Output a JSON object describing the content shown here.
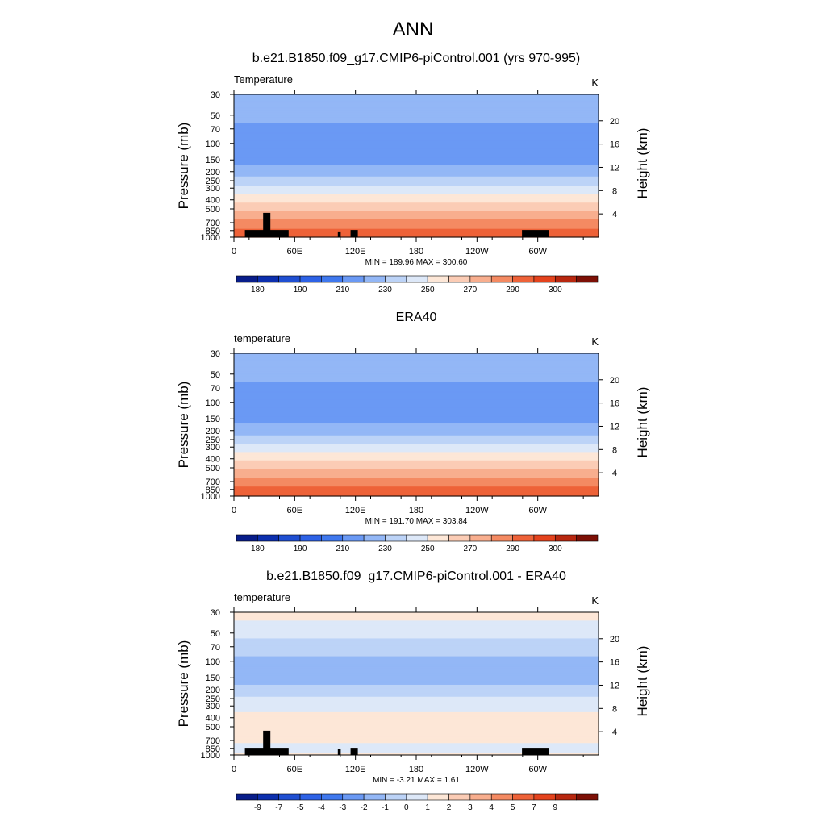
{
  "figure": {
    "title": "ANN"
  },
  "chart_data": [
    {
      "type": "heatmap",
      "title": "b.e21.B1850.f09_g17.CMIP6-piControl.001 (yrs 970-995)",
      "left_label": "Temperature",
      "units": "K",
      "ylabel": "Pressure (mb)",
      "ylabel_right": "Height (km)",
      "x_ticks": [
        "0",
        "60E",
        "120E",
        "180",
        "120W",
        "60W"
      ],
      "y_ticks": [
        "30",
        "50",
        "70",
        "100",
        "150",
        "200",
        "250",
        "300",
        "400",
        "500",
        "700",
        "850",
        "1000"
      ],
      "y_ticks_right": [
        "20",
        "16",
        "12",
        "8",
        "4"
      ],
      "stats": "MIN = 189.96  MAX = 300.60",
      "colorbar_labels": [
        "180",
        "190",
        "210",
        "230",
        "250",
        "270",
        "290",
        "300"
      ],
      "levels": [
        175,
        180,
        185,
        190,
        200,
        210,
        220,
        230,
        240,
        250,
        260,
        270,
        280,
        290,
        295,
        300
      ],
      "profile": {
        "pressure": [
          30,
          50,
          70,
          100,
          150,
          200,
          250,
          300,
          400,
          500,
          700,
          850,
          1000
        ],
        "temperature": [
          216,
          213,
          208,
          205,
          207,
          215,
          224,
          232,
          247,
          258,
          273,
          282,
          289
        ]
      },
      "min": 189.96,
      "max": 300.6,
      "topography": true
    },
    {
      "type": "heatmap",
      "title": "ERA40",
      "left_label": "temperature",
      "units": "K",
      "ylabel": "Pressure (mb)",
      "ylabel_right": "Height (km)",
      "x_ticks": [
        "0",
        "60E",
        "120E",
        "180",
        "120W",
        "60W"
      ],
      "y_ticks": [
        "30",
        "50",
        "70",
        "100",
        "150",
        "200",
        "250",
        "300",
        "400",
        "500",
        "700",
        "850",
        "1000"
      ],
      "y_ticks_right": [
        "20",
        "16",
        "12",
        "8",
        "4"
      ],
      "stats": "MIN = 191.70  MAX = 303.84",
      "colorbar_labels": [
        "180",
        "190",
        "210",
        "230",
        "250",
        "270",
        "290",
        "300"
      ],
      "levels": [
        175,
        180,
        185,
        190,
        200,
        210,
        220,
        230,
        240,
        250,
        260,
        270,
        280,
        290,
        295,
        300
      ],
      "profile": {
        "pressure": [
          30,
          50,
          70,
          100,
          150,
          200,
          250,
          300,
          400,
          500,
          700,
          850,
          1000
        ],
        "temperature": [
          216,
          213,
          208,
          205,
          207,
          215,
          225,
          233,
          248,
          259,
          274,
          283,
          290
        ]
      },
      "min": 191.7,
      "max": 303.84,
      "topography": false
    },
    {
      "type": "heatmap",
      "title": "b.e21.B1850.f09_g17.CMIP6-piControl.001 - ERA40",
      "left_label": "temperature",
      "units": "K",
      "ylabel": "Pressure (mb)",
      "ylabel_right": "Height (km)",
      "x_ticks": [
        "0",
        "60E",
        "120E",
        "180",
        "120W",
        "60W"
      ],
      "y_ticks": [
        "30",
        "50",
        "70",
        "100",
        "150",
        "200",
        "250",
        "300",
        "400",
        "500",
        "700",
        "850",
        "1000"
      ],
      "y_ticks_right": [
        "20",
        "16",
        "12",
        "8",
        "4"
      ],
      "stats": "MIN =  -3.21  MAX =   1.61",
      "colorbar_labels": [
        "-9",
        "-7",
        "-5",
        "-4",
        "-3",
        "-2",
        "-1",
        "0",
        "1",
        "2",
        "3",
        "4",
        "5",
        "7",
        "9"
      ],
      "levels": [
        -11,
        -9,
        -7,
        -5,
        -4,
        -3,
        -2,
        -1,
        0,
        1,
        2,
        3,
        4,
        5,
        7,
        9
      ],
      "profile": {
        "pressure": [
          30,
          50,
          70,
          100,
          150,
          200,
          250,
          300,
          400,
          500,
          700,
          850,
          1000
        ],
        "temperature": [
          0.4,
          -0.6,
          -1.6,
          -2.2,
          -2.3,
          -1.8,
          -0.8,
          -0.4,
          0.4,
          0.5,
          0.3,
          -0.5,
          0.2
        ]
      },
      "min": -3.21,
      "max": 1.61,
      "topography": true
    }
  ],
  "colors": {
    "palette": [
      "#081d8a",
      "#0c2fae",
      "#1f4fd2",
      "#2d62e6",
      "#3f78ee",
      "#6a99f4",
      "#93b7f6",
      "#bcd3f7",
      "#dde8f8",
      "#fde7d7",
      "#fbccb5",
      "#f8ae8e",
      "#f48a62",
      "#ee6238",
      "#e4431d",
      "#b8270f",
      "#7d1006"
    ],
    "topography": "#000000"
  }
}
